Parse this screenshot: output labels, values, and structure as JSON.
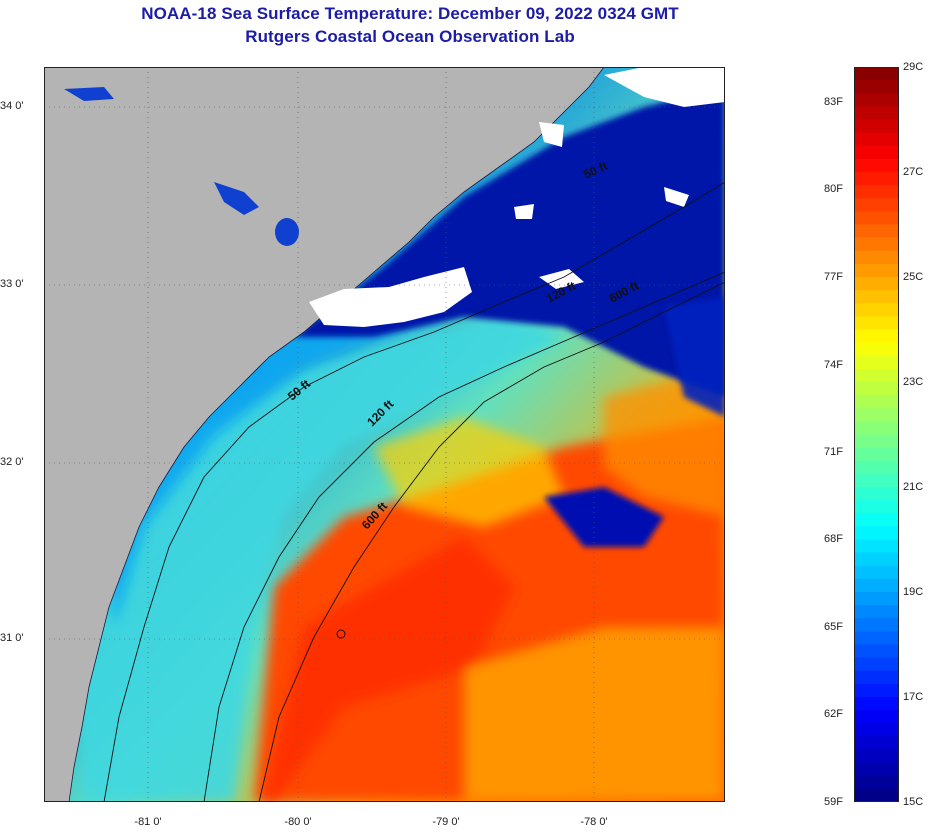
{
  "title": {
    "line1": "NOAA-18 Sea Surface Temperature:  December 09, 2022 0324 GMT",
    "line2": "Rutgers Coastal Ocean Observation Lab"
  },
  "axes": {
    "lat_labels": [
      "34 0'",
      "33 0'",
      "32 0'",
      "31 0'"
    ],
    "lon_labels": [
      "-81 0'",
      "-80 0'",
      "-79 0'",
      "-78 0'"
    ]
  },
  "isobaths": [
    "50 ft",
    "50 ft",
    "120 ft",
    "600 ft",
    "120 ft",
    "600 ft"
  ],
  "colorbar": {
    "fahrenheit": [
      "83F",
      "80F",
      "77F",
      "74F",
      "71F",
      "68F",
      "65F",
      "62F",
      "59F"
    ],
    "celsius": [
      "29C",
      "27C",
      "25C",
      "23C",
      "21C",
      "19C",
      "17C",
      "15C"
    ],
    "range_c": [
      15,
      29
    ],
    "range_f": [
      59,
      84.2
    ]
  },
  "colors": {
    "land": "#b4b4b4",
    "cloud": "#ffffff",
    "title": "#1c1ca8",
    "colormap": [
      "#00007f",
      "#0000ff",
      "#0080ff",
      "#00ffff",
      "#80ff80",
      "#ffff00",
      "#ff8000",
      "#ff0000",
      "#7f0000"
    ]
  }
}
